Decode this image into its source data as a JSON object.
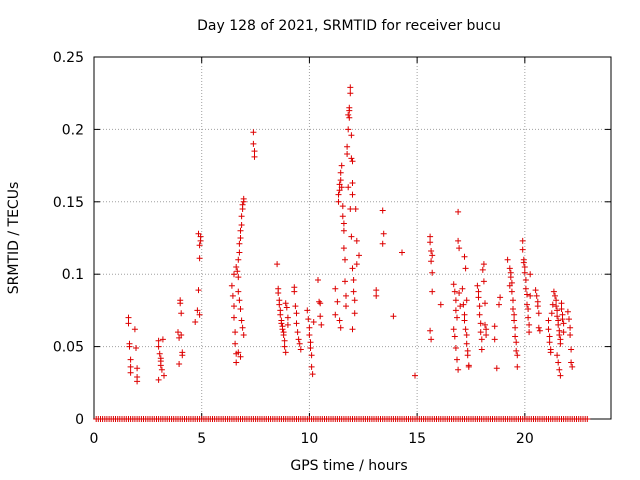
{
  "chart_data": {
    "type": "scatter",
    "title": "Day 128 of 2021, SRMTID for receiver bucu",
    "xlabel": "GPS time / hours",
    "ylabel": "SRMTID / TECUs",
    "xlim": [
      0,
      24
    ],
    "ylim": [
      0,
      0.25
    ],
    "grid": true,
    "marker": "+",
    "color": "#dd0000",
    "xticks": [
      0,
      5,
      10,
      15,
      20
    ],
    "xtick_labels": [
      "0",
      "5",
      "10",
      "15",
      "20"
    ],
    "yticks": [
      0,
      0.05,
      0.1,
      0.15,
      0.2,
      0.25
    ],
    "ytick_labels": [
      "0",
      "0.05",
      "0.1",
      "0.15",
      "0.2",
      "0.25"
    ],
    "zero_band": {
      "x_start": 0.1,
      "x_end": 22.9,
      "step": 0.1,
      "y": 0
    },
    "series": [
      {
        "name": "SRMTID",
        "points": [
          [
            1.6,
            0.07
          ],
          [
            1.6,
            0.066
          ],
          [
            1.65,
            0.052
          ],
          [
            1.65,
            0.05
          ],
          [
            1.7,
            0.041
          ],
          [
            1.7,
            0.036
          ],
          [
            1.7,
            0.032
          ],
          [
            1.9,
            0.062
          ],
          [
            1.95,
            0.049
          ],
          [
            2.0,
            0.035
          ],
          [
            2.0,
            0.029
          ],
          [
            2.0,
            0.026
          ],
          [
            3.0,
            0.054
          ],
          [
            3.0,
            0.05
          ],
          [
            3.05,
            0.045
          ],
          [
            3.1,
            0.042
          ],
          [
            3.1,
            0.04
          ],
          [
            3.1,
            0.037
          ],
          [
            3.15,
            0.034
          ],
          [
            3.0,
            0.027
          ],
          [
            3.2,
            0.055
          ],
          [
            3.25,
            0.03
          ],
          [
            3.9,
            0.06
          ],
          [
            3.95,
            0.056
          ],
          [
            4.0,
            0.082
          ],
          [
            4.0,
            0.08
          ],
          [
            4.05,
            0.073
          ],
          [
            4.05,
            0.058
          ],
          [
            4.1,
            0.046
          ],
          [
            4.1,
            0.044
          ],
          [
            3.95,
            0.038
          ],
          [
            4.7,
            0.067
          ],
          [
            4.8,
            0.075
          ],
          [
            4.85,
            0.089
          ],
          [
            4.9,
            0.111
          ],
          [
            4.9,
            0.12
          ],
          [
            4.95,
            0.123
          ],
          [
            4.95,
            0.126
          ],
          [
            4.85,
            0.128
          ],
          [
            4.9,
            0.072
          ],
          [
            6.4,
            0.092
          ],
          [
            6.45,
            0.085
          ],
          [
            6.5,
            0.078
          ],
          [
            6.5,
            0.07
          ],
          [
            6.55,
            0.06
          ],
          [
            6.55,
            0.052
          ],
          [
            6.6,
            0.045
          ],
          [
            6.6,
            0.039
          ],
          [
            6.65,
            0.102
          ],
          [
            6.7,
            0.098
          ],
          [
            6.7,
            0.11
          ],
          [
            6.75,
            0.115
          ],
          [
            6.75,
            0.121
          ],
          [
            6.8,
            0.125
          ],
          [
            6.8,
            0.13
          ],
          [
            6.85,
            0.134
          ],
          [
            6.85,
            0.14
          ],
          [
            6.9,
            0.145
          ],
          [
            6.9,
            0.148
          ],
          [
            6.95,
            0.15
          ],
          [
            6.95,
            0.152
          ],
          [
            6.7,
            0.088
          ],
          [
            6.75,
            0.082
          ],
          [
            6.8,
            0.076
          ],
          [
            6.85,
            0.068
          ],
          [
            6.9,
            0.063
          ],
          [
            6.95,
            0.058
          ],
          [
            6.6,
            0.105
          ],
          [
            6.7,
            0.046
          ],
          [
            6.8,
            0.043
          ],
          [
            6.5,
            0.1
          ],
          [
            7.4,
            0.198
          ],
          [
            7.4,
            0.19
          ],
          [
            7.45,
            0.185
          ],
          [
            7.45,
            0.181
          ],
          [
            8.5,
            0.107
          ],
          [
            8.55,
            0.09
          ],
          [
            8.55,
            0.087
          ],
          [
            8.6,
            0.082
          ],
          [
            8.6,
            0.079
          ],
          [
            8.65,
            0.075
          ],
          [
            8.65,
            0.072
          ],
          [
            8.7,
            0.068
          ],
          [
            8.7,
            0.066
          ],
          [
            8.75,
            0.064
          ],
          [
            8.75,
            0.062
          ],
          [
            8.8,
            0.06
          ],
          [
            8.8,
            0.058
          ],
          [
            8.85,
            0.054
          ],
          [
            8.85,
            0.05
          ],
          [
            8.9,
            0.046
          ],
          [
            8.9,
            0.08
          ],
          [
            8.95,
            0.077
          ],
          [
            9.0,
            0.07
          ],
          [
            9.0,
            0.065
          ],
          [
            9.3,
            0.091
          ],
          [
            9.3,
            0.088
          ],
          [
            9.35,
            0.078
          ],
          [
            9.4,
            0.073
          ],
          [
            9.4,
            0.066
          ],
          [
            9.45,
            0.06
          ],
          [
            9.5,
            0.055
          ],
          [
            9.55,
            0.052
          ],
          [
            9.6,
            0.048
          ],
          [
            9.9,
            0.075
          ],
          [
            9.95,
            0.069
          ],
          [
            10.0,
            0.063
          ],
          [
            10.0,
            0.058
          ],
          [
            10.05,
            0.053
          ],
          [
            10.05,
            0.049
          ],
          [
            10.1,
            0.044
          ],
          [
            10.1,
            0.036
          ],
          [
            10.15,
            0.031
          ],
          [
            10.2,
            0.067
          ],
          [
            10.4,
            0.096
          ],
          [
            10.45,
            0.081
          ],
          [
            10.5,
            0.08
          ],
          [
            10.5,
            0.071
          ],
          [
            10.55,
            0.065
          ],
          [
            11.2,
            0.09
          ],
          [
            11.2,
            0.072
          ],
          [
            11.3,
            0.081
          ],
          [
            11.35,
            0.15
          ],
          [
            11.35,
            0.155
          ],
          [
            11.4,
            0.162
          ],
          [
            11.4,
            0.158
          ],
          [
            11.45,
            0.165
          ],
          [
            11.45,
            0.17
          ],
          [
            11.5,
            0.175
          ],
          [
            11.5,
            0.16
          ],
          [
            11.55,
            0.147
          ],
          [
            11.55,
            0.14
          ],
          [
            11.6,
            0.135
          ],
          [
            11.6,
            0.13
          ],
          [
            11.6,
            0.118
          ],
          [
            11.65,
            0.11
          ],
          [
            11.65,
            0.095
          ],
          [
            11.7,
            0.085
          ],
          [
            11.7,
            0.078
          ],
          [
            11.75,
            0.188
          ],
          [
            11.75,
            0.183
          ],
          [
            11.8,
            0.2
          ],
          [
            11.8,
            0.21
          ],
          [
            11.85,
            0.208
          ],
          [
            11.85,
            0.213
          ],
          [
            11.85,
            0.215
          ],
          [
            11.9,
            0.225
          ],
          [
            11.9,
            0.229
          ],
          [
            11.95,
            0.196
          ],
          [
            11.95,
            0.18
          ],
          [
            12.0,
            0.178
          ],
          [
            12.0,
            0.163
          ],
          [
            12.0,
            0.155
          ],
          [
            11.8,
            0.16
          ],
          [
            11.9,
            0.145
          ],
          [
            11.95,
            0.126
          ],
          [
            12.0,
            0.104
          ],
          [
            12.05,
            0.096
          ],
          [
            12.05,
            0.088
          ],
          [
            12.1,
            0.082
          ],
          [
            12.1,
            0.073
          ],
          [
            12.0,
            0.062
          ],
          [
            12.15,
            0.145
          ],
          [
            12.2,
            0.123
          ],
          [
            12.2,
            0.107
          ],
          [
            12.3,
            0.113
          ],
          [
            11.4,
            0.068
          ],
          [
            11.45,
            0.063
          ],
          [
            13.1,
            0.089
          ],
          [
            13.1,
            0.085
          ],
          [
            13.4,
            0.144
          ],
          [
            13.4,
            0.121
          ],
          [
            13.45,
            0.128
          ],
          [
            13.9,
            0.071
          ],
          [
            14.3,
            0.115
          ],
          [
            14.9,
            0.03
          ],
          [
            15.6,
            0.126
          ],
          [
            15.6,
            0.122
          ],
          [
            15.65,
            0.116
          ],
          [
            15.65,
            0.109
          ],
          [
            15.7,
            0.101
          ],
          [
            15.7,
            0.088
          ],
          [
            15.6,
            0.061
          ],
          [
            15.65,
            0.055
          ],
          [
            15.7,
            0.113
          ],
          [
            16.1,
            0.079
          ],
          [
            16.7,
            0.093
          ],
          [
            16.75,
            0.088
          ],
          [
            16.8,
            0.082
          ],
          [
            16.8,
            0.075
          ],
          [
            16.85,
            0.07
          ],
          [
            16.9,
            0.143
          ],
          [
            16.9,
            0.123
          ],
          [
            16.95,
            0.118
          ],
          [
            16.7,
            0.062
          ],
          [
            16.75,
            0.057
          ],
          [
            16.8,
            0.049
          ],
          [
            16.85,
            0.041
          ],
          [
            16.9,
            0.034
          ],
          [
            16.95,
            0.087
          ],
          [
            17.0,
            0.078
          ],
          [
            17.1,
            0.09
          ],
          [
            17.15,
            0.079
          ],
          [
            17.2,
            0.072
          ],
          [
            17.2,
            0.068
          ],
          [
            17.25,
            0.062
          ],
          [
            17.3,
            0.058
          ],
          [
            17.3,
            0.052
          ],
          [
            17.35,
            0.047
          ],
          [
            17.35,
            0.044
          ],
          [
            17.4,
            0.037
          ],
          [
            17.4,
            0.036
          ],
          [
            17.2,
            0.112
          ],
          [
            17.25,
            0.104
          ],
          [
            17.3,
            0.082
          ],
          [
            17.8,
            0.092
          ],
          [
            17.85,
            0.088
          ],
          [
            17.85,
            0.084
          ],
          [
            17.9,
            0.078
          ],
          [
            17.9,
            0.072
          ],
          [
            17.95,
            0.066
          ],
          [
            17.95,
            0.06
          ],
          [
            18.0,
            0.055
          ],
          [
            18.0,
            0.048
          ],
          [
            18.05,
            0.103
          ],
          [
            18.1,
            0.107
          ],
          [
            18.1,
            0.095
          ],
          [
            18.15,
            0.08
          ],
          [
            18.15,
            0.065
          ],
          [
            18.2,
            0.062
          ],
          [
            18.2,
            0.058
          ],
          [
            18.6,
            0.064
          ],
          [
            18.6,
            0.055
          ],
          [
            18.7,
            0.035
          ],
          [
            18.8,
            0.079
          ],
          [
            18.85,
            0.084
          ],
          [
            19.2,
            0.11
          ],
          [
            19.3,
            0.104
          ],
          [
            19.35,
            0.101
          ],
          [
            19.35,
            0.098
          ],
          [
            19.4,
            0.094
          ],
          [
            19.4,
            0.088
          ],
          [
            19.45,
            0.082
          ],
          [
            19.45,
            0.076
          ],
          [
            19.5,
            0.072
          ],
          [
            19.5,
            0.068
          ],
          [
            19.55,
            0.063
          ],
          [
            19.55,
            0.057
          ],
          [
            19.6,
            0.053
          ],
          [
            19.6,
            0.047
          ],
          [
            19.65,
            0.044
          ],
          [
            19.65,
            0.036
          ],
          [
            19.3,
            0.092
          ],
          [
            19.9,
            0.123
          ],
          [
            19.9,
            0.117
          ],
          [
            19.95,
            0.11
          ],
          [
            19.95,
            0.108
          ],
          [
            20.0,
            0.105
          ],
          [
            20.0,
            0.101
          ],
          [
            20.05,
            0.096
          ],
          [
            20.05,
            0.09
          ],
          [
            20.1,
            0.086
          ],
          [
            20.1,
            0.079
          ],
          [
            20.15,
            0.076
          ],
          [
            20.15,
            0.07
          ],
          [
            20.2,
            0.065
          ],
          [
            20.2,
            0.06
          ],
          [
            20.25,
            0.1
          ],
          [
            20.25,
            0.085
          ],
          [
            20.5,
            0.089
          ],
          [
            20.55,
            0.085
          ],
          [
            20.6,
            0.081
          ],
          [
            20.6,
            0.078
          ],
          [
            20.65,
            0.073
          ],
          [
            20.65,
            0.063
          ],
          [
            20.7,
            0.061
          ],
          [
            21.1,
            0.068
          ],
          [
            21.1,
            0.062
          ],
          [
            21.15,
            0.057
          ],
          [
            21.15,
            0.053
          ],
          [
            21.2,
            0.048
          ],
          [
            21.2,
            0.046
          ],
          [
            21.25,
            0.073
          ],
          [
            21.3,
            0.079
          ],
          [
            21.35,
            0.088
          ],
          [
            21.4,
            0.085
          ],
          [
            21.45,
            0.082
          ],
          [
            21.45,
            0.078
          ],
          [
            21.5,
            0.075
          ],
          [
            21.5,
            0.071
          ],
          [
            21.55,
            0.068
          ],
          [
            21.55,
            0.065
          ],
          [
            21.6,
            0.061
          ],
          [
            21.6,
            0.058
          ],
          [
            21.65,
            0.055
          ],
          [
            21.65,
            0.052
          ],
          [
            21.5,
            0.044
          ],
          [
            21.55,
            0.039
          ],
          [
            21.6,
            0.034
          ],
          [
            21.65,
            0.03
          ],
          [
            21.7,
            0.08
          ],
          [
            21.7,
            0.076
          ],
          [
            21.75,
            0.072
          ],
          [
            21.75,
            0.069
          ],
          [
            21.8,
            0.066
          ],
          [
            21.8,
            0.06
          ],
          [
            22.0,
            0.074
          ],
          [
            22.05,
            0.069
          ],
          [
            22.1,
            0.063
          ],
          [
            22.1,
            0.058
          ],
          [
            22.15,
            0.048
          ],
          [
            22.15,
            0.039
          ],
          [
            22.2,
            0.036
          ]
        ]
      }
    ]
  }
}
